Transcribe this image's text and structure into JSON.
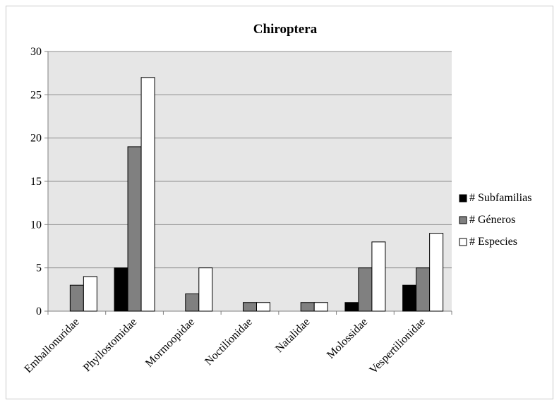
{
  "chart_data": {
    "type": "bar",
    "title": "Chiroptera",
    "xlabel": "",
    "ylabel": "",
    "ylim": [
      0,
      30
    ],
    "yticks": [
      0,
      5,
      10,
      15,
      20,
      25,
      30
    ],
    "grid": true,
    "legend_position": "right",
    "categories": [
      "Emballonuridae",
      "Phyllostomidae",
      "Mormoopidae",
      "Noctilionidae",
      "Natalidae",
      "Molossidae",
      "Vespertilionidae"
    ],
    "series": [
      {
        "name": "# Subfamilias",
        "color": "#000000",
        "values": [
          0,
          5,
          0,
          0,
          0,
          1,
          3
        ]
      },
      {
        "name": "# Géneros",
        "color": "#808080",
        "values": [
          3,
          19,
          2,
          1,
          1,
          5,
          5
        ]
      },
      {
        "name": "# Especies",
        "color": "#ffffff",
        "values": [
          4,
          27,
          5,
          1,
          1,
          8,
          9
        ]
      }
    ],
    "plot_background": "#e6e6e6"
  }
}
